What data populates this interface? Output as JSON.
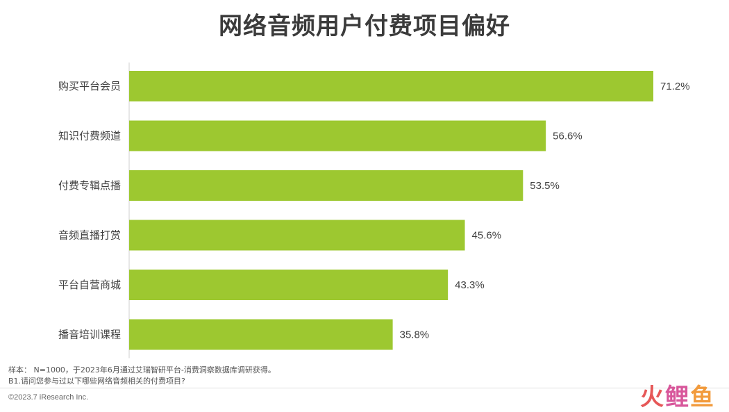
{
  "title": "网络音频用户付费项目偏好",
  "chart_data": {
    "type": "bar",
    "orientation": "horizontal",
    "categories": [
      "购买平台会员",
      "知识付费频道",
      "付费专辑点播",
      "音频直播打赏",
      "平台自营商城",
      "播音培训课程"
    ],
    "values": [
      71.2,
      56.6,
      53.5,
      45.6,
      43.3,
      35.8
    ],
    "value_labels": [
      "71.2%",
      "56.6%",
      "53.5%",
      "45.6%",
      "43.3%",
      "35.8%"
    ],
    "bar_color": "#9dc830",
    "xlim": [
      0,
      80
    ],
    "grid": false,
    "legend": "none"
  },
  "footer": {
    "note1": "样本： N=1000，于2023年6月通过艾瑞智研平台-消费洞察数据库调研获得。",
    "note2": "B1.请问您参与过以下哪些网络音频相关的付费项目?",
    "copyright": "©2023.7 iResearch Inc."
  },
  "watermark": {
    "c1": "火",
    "c2": "鲤",
    "c3": "鱼"
  }
}
